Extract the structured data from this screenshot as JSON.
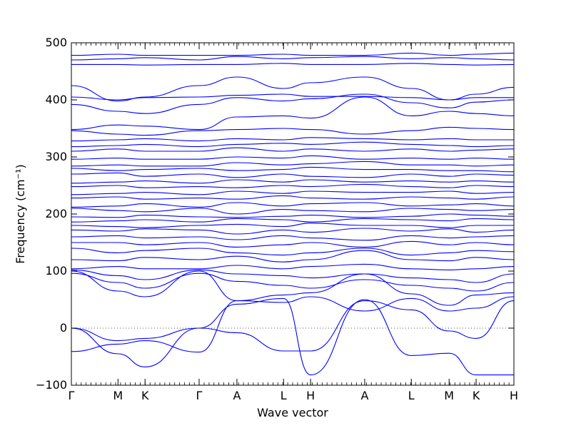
{
  "chart_data": {
    "type": "line",
    "title": "",
    "xlabel": "Wave vector",
    "ylabel": "Frequency (cm⁻¹)",
    "ylim": [
      -100,
      500
    ],
    "yticks": [
      -100,
      0,
      100,
      200,
      300,
      400,
      500
    ],
    "zero_line": "dotted",
    "line_color": "#0000ff",
    "path_points": [
      {
        "label": "Γ",
        "x": 0.0
      },
      {
        "label": "M",
        "x": 1.0
      },
      {
        "label": "K",
        "x": 1.58
      },
      {
        "label": "Γ",
        "x": 2.74
      },
      {
        "label": "A",
        "x": 3.55
      },
      {
        "label": "L",
        "x": 4.55
      },
      {
        "label": "H",
        "x": 5.13
      },
      {
        "label": "A",
        "x": 6.29
      },
      {
        "label": "L",
        "x": 7.29
      },
      {
        "label": "M",
        "x": 8.1
      },
      {
        "label": "K",
        "x": 8.68
      },
      {
        "label": "H",
        "x": 9.49
      }
    ],
    "xlim": [
      0,
      9.49
    ],
    "series": [
      {
        "values": [
          0,
          -45,
          -68,
          0,
          42,
          52,
          -82,
          50,
          -48,
          -44,
          -82,
          -82
        ]
      },
      {
        "values": [
          0,
          -22,
          -18,
          0,
          -8,
          -40,
          -40,
          48,
          32,
          -5,
          -18,
          48
        ]
      },
      {
        "values": [
          -41,
          -28,
          -22,
          -42,
          48,
          45,
          55,
          30,
          52,
          30,
          35,
          55
        ]
      },
      {
        "values": [
          100,
          65,
          55,
          100,
          48,
          58,
          62,
          95,
          60,
          40,
          58,
          62
        ]
      },
      {
        "values": [
          96,
          80,
          70,
          96,
          82,
          75,
          70,
          85,
          75,
          70,
          65,
          80
        ]
      },
      {
        "values": [
          102,
          92,
          85,
          102,
          95,
          92,
          88,
          95,
          88,
          85,
          80,
          95
        ]
      },
      {
        "values": [
          104,
          108,
          104,
          104,
          110,
          104,
          108,
          112,
          104,
          102,
          104,
          108
        ]
      },
      {
        "values": [
          120,
          118,
          124,
          120,
          126,
          116,
          120,
          136,
          120,
          118,
          124,
          120
        ]
      },
      {
        "values": [
          140,
          132,
          136,
          140,
          132,
          128,
          132,
          140,
          128,
          132,
          136,
          134
        ]
      },
      {
        "values": [
          150,
          150,
          146,
          150,
          142,
          146,
          150,
          142,
          152,
          146,
          150,
          146
        ]
      },
      {
        "values": [
          160,
          162,
          158,
          160,
          155,
          162,
          158,
          154,
          162,
          158,
          160,
          162
        ]
      },
      {
        "values": [
          172,
          170,
          174,
          172,
          165,
          172,
          168,
          175,
          170,
          174,
          168,
          172
        ]
      },
      {
        "values": [
          180,
          178,
          176,
          180,
          182,
          178,
          184,
          180,
          180,
          176,
          180,
          180
        ]
      },
      {
        "values": [
          186,
          188,
          190,
          186,
          192,
          190,
          186,
          192,
          190,
          188,
          192,
          190
        ]
      },
      {
        "values": [
          195,
          194,
          198,
          195,
          194,
          196,
          198,
          194,
          196,
          200,
          198,
          196
        ]
      },
      {
        "values": [
          210,
          206,
          204,
          210,
          200,
          208,
          206,
          204,
          210,
          208,
          206,
          208
        ]
      },
      {
        "values": [
          212,
          214,
          218,
          212,
          220,
          214,
          218,
          220,
          214,
          216,
          218,
          214
        ]
      },
      {
        "values": [
          228,
          230,
          226,
          228,
          226,
          232,
          228,
          226,
          230,
          228,
          226,
          230
        ]
      },
      {
        "values": [
          234,
          236,
          238,
          234,
          240,
          236,
          240,
          238,
          238,
          240,
          236,
          238
        ]
      },
      {
        "values": [
          248,
          250,
          246,
          248,
          246,
          250,
          248,
          252,
          248,
          246,
          250,
          248
        ]
      },
      {
        "values": [
          254,
          256,
          258,
          254,
          260,
          256,
          260,
          256,
          258,
          256,
          258,
          256
        ]
      },
      {
        "values": [
          270,
          272,
          266,
          270,
          264,
          270,
          266,
          264,
          270,
          266,
          270,
          268
        ]
      },
      {
        "values": [
          280,
          276,
          278,
          280,
          276,
          278,
          282,
          278,
          278,
          276,
          276,
          274
        ]
      },
      {
        "values": [
          284,
          286,
          284,
          284,
          290,
          286,
          288,
          292,
          286,
          286,
          284,
          286
        ]
      },
      {
        "values": [
          296,
          298,
          296,
          296,
          300,
          298,
          302,
          296,
          298,
          296,
          298,
          296
        ]
      },
      {
        "values": [
          310,
          314,
          310,
          310,
          316,
          310,
          314,
          310,
          314,
          310,
          312,
          314
        ]
      },
      {
        "values": [
          318,
          320,
          322,
          318,
          322,
          324,
          322,
          326,
          322,
          320,
          318,
          320
        ]
      },
      {
        "values": [
          328,
          330,
          332,
          328,
          332,
          330,
          334,
          332,
          330,
          332,
          330,
          330
        ]
      },
      {
        "values": [
          346,
          340,
          338,
          346,
          348,
          350,
          348,
          340,
          346,
          352,
          350,
          348
        ]
      },
      {
        "values": [
          348,
          356,
          354,
          348,
          370,
          372,
          368,
          405,
          372,
          380,
          376,
          372
        ]
      },
      {
        "values": [
          392,
          380,
          376,
          392,
          404,
          398,
          402,
          410,
          395,
          386,
          396,
          400
        ]
      },
      {
        "values": [
          405,
          400,
          404,
          405,
          408,
          410,
          406,
          406,
          404,
          400,
          404,
          404
        ]
      },
      {
        "values": [
          425,
          398,
          405,
          425,
          440,
          420,
          430,
          440,
          420,
          400,
          410,
          422
        ]
      },
      {
        "values": [
          462,
          462,
          461,
          462,
          462,
          464,
          462,
          462,
          464,
          462,
          461,
          462
        ]
      },
      {
        "values": [
          470,
          472,
          474,
          470,
          476,
          472,
          474,
          476,
          472,
          474,
          472,
          470
        ]
      },
      {
        "values": [
          478,
          480,
          478,
          478,
          478,
          480,
          478,
          478,
          482,
          478,
          480,
          482
        ]
      }
    ]
  }
}
